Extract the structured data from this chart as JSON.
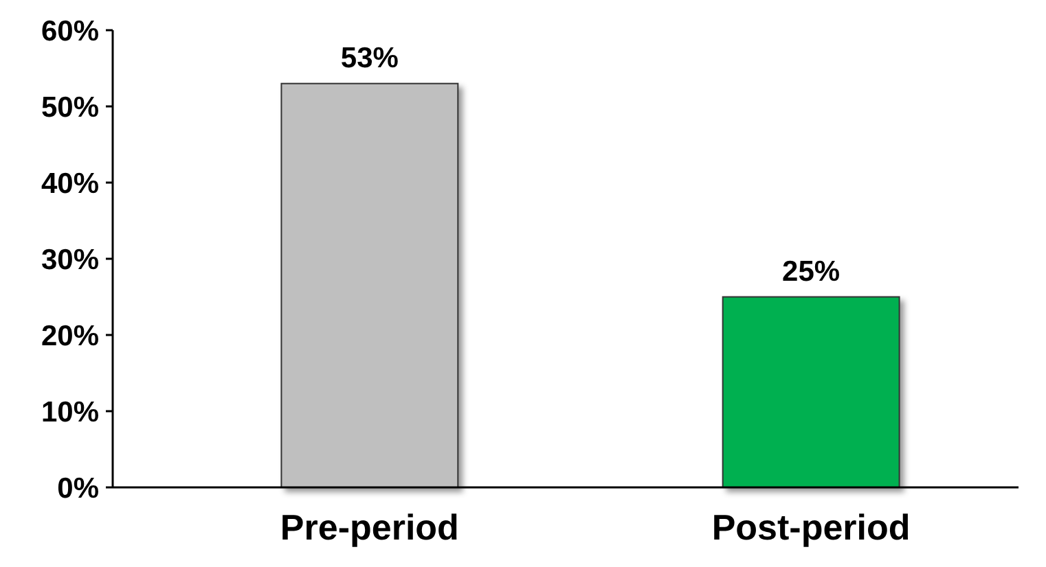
{
  "chart_data": {
    "type": "bar",
    "categories": [
      "Pre-period",
      "Post-period"
    ],
    "values": [
      53,
      25
    ],
    "colors": [
      "#bfbfbf",
      "#00b050"
    ],
    "value_labels": [
      "53%",
      "25%"
    ],
    "ylim": [
      0,
      60
    ],
    "yticks": [
      {
        "value": 0,
        "label": "0%"
      },
      {
        "value": 10,
        "label": "10%"
      },
      {
        "value": 20,
        "label": "20%"
      },
      {
        "value": 30,
        "label": "30%"
      },
      {
        "value": 40,
        "label": "40%"
      },
      {
        "value": 50,
        "label": "50%"
      },
      {
        "value": 60,
        "label": "60%"
      }
    ],
    "grid": false
  }
}
